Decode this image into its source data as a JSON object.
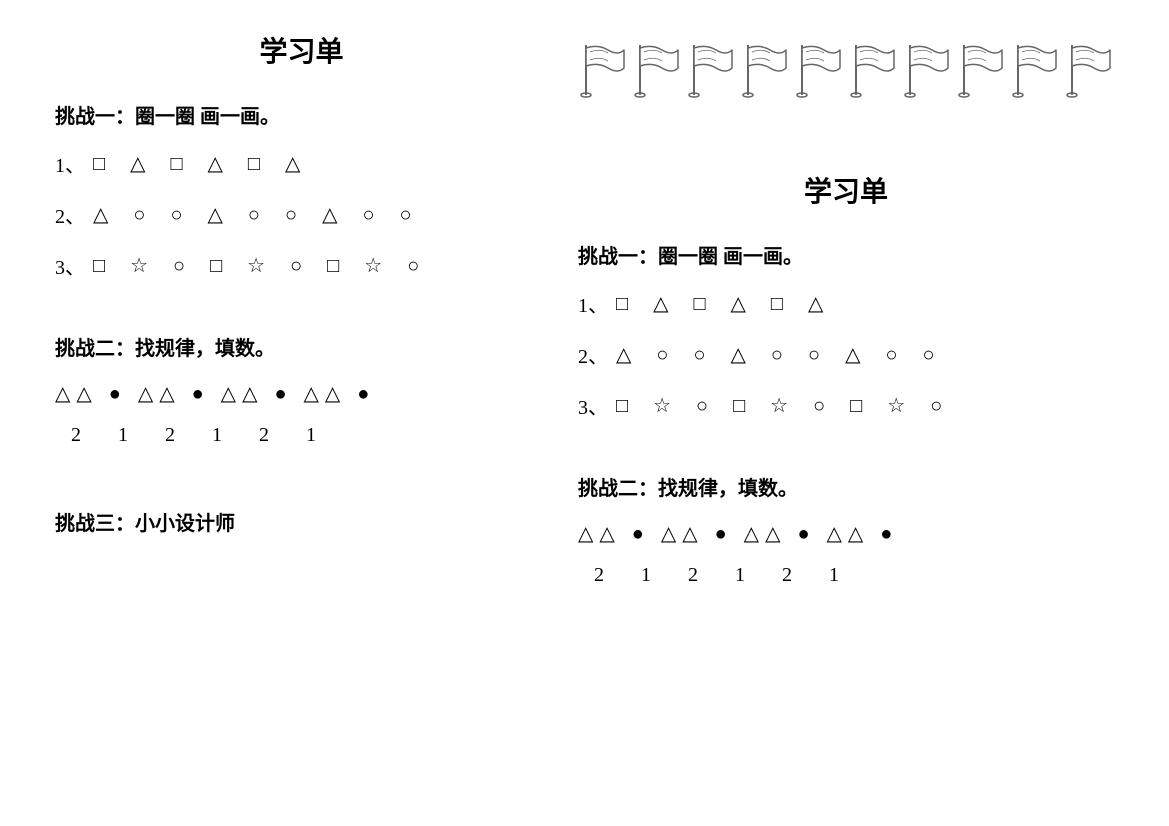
{
  "title": "学习单",
  "challenge1": {
    "heading": "挑战一：圈一圈  画一画。",
    "rows": [
      {
        "prefix": "1、",
        "shapes": "□ △ □ △ □ △"
      },
      {
        "prefix": "2、",
        "shapes": "△ ○ ○ △ ○ ○ △ ○ ○"
      },
      {
        "prefix": "3、",
        "shapes": "□ ☆ ○ □ ☆ ○ □ ☆ ○"
      }
    ]
  },
  "challenge2": {
    "heading": "挑战二：找规律，填数。",
    "shapes": "△△ ● △△ ● △△ ● △△ ●",
    "numbers": [
      "2",
      "1",
      "2",
      "1",
      "2",
      "1"
    ]
  },
  "challenge3": {
    "heading": "挑战三：小小设计师"
  },
  "flags": {
    "count": 10,
    "stroke_color": "#666666",
    "fill_color": "#ffffff"
  },
  "colors": {
    "text": "#000000",
    "background": "#ffffff"
  }
}
